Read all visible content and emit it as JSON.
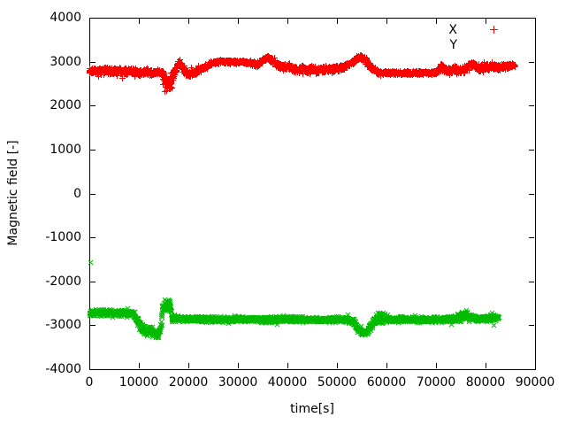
{
  "chart_data": {
    "type": "scatter",
    "title": "",
    "xlabel": "time[s]",
    "ylabel": "Magnetic field [-]",
    "x_range": [
      0,
      90000
    ],
    "y_range": [
      -4000,
      4000
    ],
    "grid": false,
    "background_color": "#ffffff",
    "axis_color": "#000000",
    "xticks": [
      {
        "value": 0,
        "label": "0"
      },
      {
        "value": 10000,
        "label": "10000"
      },
      {
        "value": 20000,
        "label": "20000"
      },
      {
        "value": 30000,
        "label": "30000"
      },
      {
        "value": 40000,
        "label": "40000"
      },
      {
        "value": 50000,
        "label": "50000"
      },
      {
        "value": 60000,
        "label": "60000"
      },
      {
        "value": 70000,
        "label": "70000"
      },
      {
        "value": 80000,
        "label": "80000"
      },
      {
        "value": 90000,
        "label": "90000"
      }
    ],
    "yticks": [
      {
        "value": 4000,
        "label": "4000"
      },
      {
        "value": 3000,
        "label": "3000"
      },
      {
        "value": 2000,
        "label": "2000"
      },
      {
        "value": 1000,
        "label": "1000"
      },
      {
        "value": 0,
        "label": "0"
      },
      {
        "value": -1000,
        "label": "-1000"
      },
      {
        "value": -2000,
        "label": "-2000"
      },
      {
        "value": -3000,
        "label": "-3000"
      },
      {
        "value": -4000,
        "label": "-4000"
      }
    ],
    "legend": {
      "position": "top-right",
      "entries": [
        {
          "label": "X",
          "marker": "plus",
          "color": "#ff0000",
          "sample_visible": true
        },
        {
          "label": "Y",
          "marker": "cross",
          "color": "#00bb00",
          "sample_visible": false
        }
      ]
    },
    "series": [
      {
        "name": "X",
        "marker": "plus",
        "color": "#ff0000",
        "seed": 1337,
        "x_start": 0,
        "x_end": 85800,
        "sample_step": 55,
        "centerline": [
          [
            0,
            2810
          ],
          [
            1500,
            2790
          ],
          [
            3000,
            2830
          ],
          [
            4500,
            2780
          ],
          [
            6000,
            2810
          ],
          [
            7500,
            2780
          ],
          [
            9000,
            2800
          ],
          [
            10000,
            2760
          ],
          [
            11500,
            2790
          ],
          [
            12500,
            2750
          ],
          [
            13500,
            2790
          ],
          [
            14600,
            2740
          ],
          [
            15200,
            2560
          ],
          [
            15900,
            2500
          ],
          [
            16500,
            2560
          ],
          [
            16900,
            2700
          ],
          [
            17600,
            2900
          ],
          [
            18100,
            3000
          ],
          [
            18700,
            2880
          ],
          [
            19400,
            2760
          ],
          [
            20300,
            2720
          ],
          [
            21500,
            2780
          ],
          [
            23000,
            2870
          ],
          [
            24500,
            2960
          ],
          [
            25500,
            3000
          ],
          [
            27000,
            3010
          ],
          [
            29000,
            3000
          ],
          [
            31000,
            3000
          ],
          [
            32500,
            2980
          ],
          [
            33500,
            2930
          ],
          [
            34500,
            2990
          ],
          [
            35500,
            3090
          ],
          [
            36200,
            3100
          ],
          [
            37000,
            3010
          ],
          [
            38000,
            2920
          ],
          [
            39000,
            2880
          ],
          [
            40000,
            2920
          ],
          [
            41000,
            2850
          ],
          [
            42000,
            2820
          ],
          [
            43000,
            2860
          ],
          [
            44000,
            2800
          ],
          [
            45000,
            2850
          ],
          [
            46000,
            2790
          ],
          [
            47000,
            2840
          ],
          [
            48000,
            2830
          ],
          [
            49500,
            2840
          ],
          [
            51000,
            2870
          ],
          [
            52500,
            2950
          ],
          [
            53800,
            3060
          ],
          [
            54700,
            3110
          ],
          [
            55500,
            3060
          ],
          [
            56300,
            2950
          ],
          [
            57200,
            2840
          ],
          [
            58200,
            2770
          ],
          [
            59000,
            2750
          ],
          [
            63000,
            2750
          ],
          [
            67000,
            2750
          ],
          [
            69500,
            2750
          ],
          [
            70000,
            2770
          ],
          [
            70900,
            2880
          ],
          [
            71800,
            2820
          ],
          [
            72800,
            2800
          ],
          [
            73800,
            2840
          ],
          [
            74800,
            2800
          ],
          [
            75700,
            2840
          ],
          [
            76600,
            2920
          ],
          [
            77500,
            2940
          ],
          [
            78300,
            2880
          ],
          [
            79200,
            2830
          ],
          [
            80200,
            2880
          ],
          [
            81200,
            2920
          ],
          [
            82200,
            2860
          ],
          [
            83200,
            2890
          ],
          [
            84200,
            2900
          ],
          [
            85800,
            2930
          ]
        ],
        "amplitude": [
          [
            0,
            80
          ],
          [
            9000,
            80
          ],
          [
            13000,
            70
          ],
          [
            14300,
            70
          ],
          [
            15000,
            170
          ],
          [
            16500,
            170
          ],
          [
            17100,
            90
          ],
          [
            19000,
            80
          ],
          [
            21000,
            70
          ],
          [
            24000,
            55
          ],
          [
            25500,
            40
          ],
          [
            32000,
            40
          ],
          [
            33500,
            65
          ],
          [
            35500,
            50
          ],
          [
            37000,
            60
          ],
          [
            38500,
            75
          ],
          [
            40000,
            80
          ],
          [
            42000,
            80
          ],
          [
            44000,
            85
          ],
          [
            46000,
            80
          ],
          [
            48000,
            70
          ],
          [
            50000,
            70
          ],
          [
            52000,
            65
          ],
          [
            54500,
            65
          ],
          [
            56500,
            70
          ],
          [
            58000,
            60
          ],
          [
            59000,
            45
          ],
          [
            69500,
            45
          ],
          [
            70500,
            70
          ],
          [
            72000,
            80
          ],
          [
            74000,
            85
          ],
          [
            76000,
            70
          ],
          [
            78000,
            70
          ],
          [
            79500,
            85
          ],
          [
            81000,
            90
          ],
          [
            83000,
            75
          ],
          [
            84500,
            60
          ],
          [
            85800,
            45
          ]
        ],
        "outliers": []
      },
      {
        "name": "Y",
        "marker": "cross",
        "color": "#00bb00",
        "seed": 4242,
        "x_start": 0,
        "x_end": 82600,
        "sample_step": 55,
        "centerline": [
          [
            0,
            -2720
          ],
          [
            1500,
            -2700
          ],
          [
            3000,
            -2715
          ],
          [
            4500,
            -2705
          ],
          [
            6000,
            -2720
          ],
          [
            7500,
            -2710
          ],
          [
            8700,
            -2730
          ],
          [
            9300,
            -2800
          ],
          [
            9800,
            -2920
          ],
          [
            10300,
            -3020
          ],
          [
            10800,
            -3070
          ],
          [
            11300,
            -3110
          ],
          [
            11800,
            -3140
          ],
          [
            12300,
            -3120
          ],
          [
            12800,
            -3160
          ],
          [
            13300,
            -3200
          ],
          [
            13800,
            -3210
          ],
          [
            14100,
            -3150
          ],
          [
            14400,
            -3000
          ],
          [
            14700,
            -2600
          ],
          [
            15300,
            -2530
          ],
          [
            16000,
            -2520
          ],
          [
            16400,
            -2600
          ],
          [
            16700,
            -2840
          ],
          [
            17500,
            -2830
          ],
          [
            18500,
            -2840
          ],
          [
            20000,
            -2850
          ],
          [
            22000,
            -2850
          ],
          [
            24000,
            -2845
          ],
          [
            26000,
            -2860
          ],
          [
            28000,
            -2865
          ],
          [
            30000,
            -2850
          ],
          [
            32000,
            -2860
          ],
          [
            34000,
            -2855
          ],
          [
            36000,
            -2865
          ],
          [
            38000,
            -2860
          ],
          [
            40000,
            -2855
          ],
          [
            42000,
            -2855
          ],
          [
            44000,
            -2865
          ],
          [
            46000,
            -2860
          ],
          [
            48000,
            -2865
          ],
          [
            50000,
            -2860
          ],
          [
            52000,
            -2870
          ],
          [
            53200,
            -2920
          ],
          [
            54200,
            -3060
          ],
          [
            55100,
            -3170
          ],
          [
            55900,
            -3160
          ],
          [
            56600,
            -3040
          ],
          [
            57200,
            -2930
          ],
          [
            57900,
            -2850
          ],
          [
            58700,
            -2820
          ],
          [
            59500,
            -2840
          ],
          [
            60500,
            -2855
          ],
          [
            62000,
            -2860
          ],
          [
            64000,
            -2860
          ],
          [
            66000,
            -2865
          ],
          [
            68000,
            -2860
          ],
          [
            70000,
            -2865
          ],
          [
            72000,
            -2860
          ],
          [
            74000,
            -2845
          ],
          [
            75200,
            -2800
          ],
          [
            76200,
            -2790
          ],
          [
            77200,
            -2825
          ],
          [
            78200,
            -2840
          ],
          [
            79200,
            -2830
          ],
          [
            80200,
            -2840
          ],
          [
            81200,
            -2820
          ],
          [
            82000,
            -2830
          ],
          [
            82600,
            -2835
          ]
        ],
        "amplitude": [
          [
            0,
            80
          ],
          [
            8500,
            80
          ],
          [
            9500,
            100
          ],
          [
            10500,
            120
          ],
          [
            12000,
            130
          ],
          [
            13800,
            110
          ],
          [
            14300,
            90
          ],
          [
            14800,
            170
          ],
          [
            16300,
            170
          ],
          [
            16800,
            90
          ],
          [
            18000,
            75
          ],
          [
            25000,
            70
          ],
          [
            35000,
            70
          ],
          [
            45000,
            70
          ],
          [
            52000,
            70
          ],
          [
            53500,
            80
          ],
          [
            55000,
            85
          ],
          [
            56500,
            85
          ],
          [
            58000,
            100
          ],
          [
            59000,
            150
          ],
          [
            59800,
            100
          ],
          [
            61000,
            75
          ],
          [
            70000,
            70
          ],
          [
            73500,
            80
          ],
          [
            75000,
            120
          ],
          [
            76200,
            140
          ],
          [
            77200,
            90
          ],
          [
            78500,
            75
          ],
          [
            80500,
            80
          ],
          [
            82000,
            80
          ],
          [
            82600,
            70
          ]
        ],
        "outliers": [
          [
            250,
            -1560
          ]
        ]
      }
    ]
  }
}
